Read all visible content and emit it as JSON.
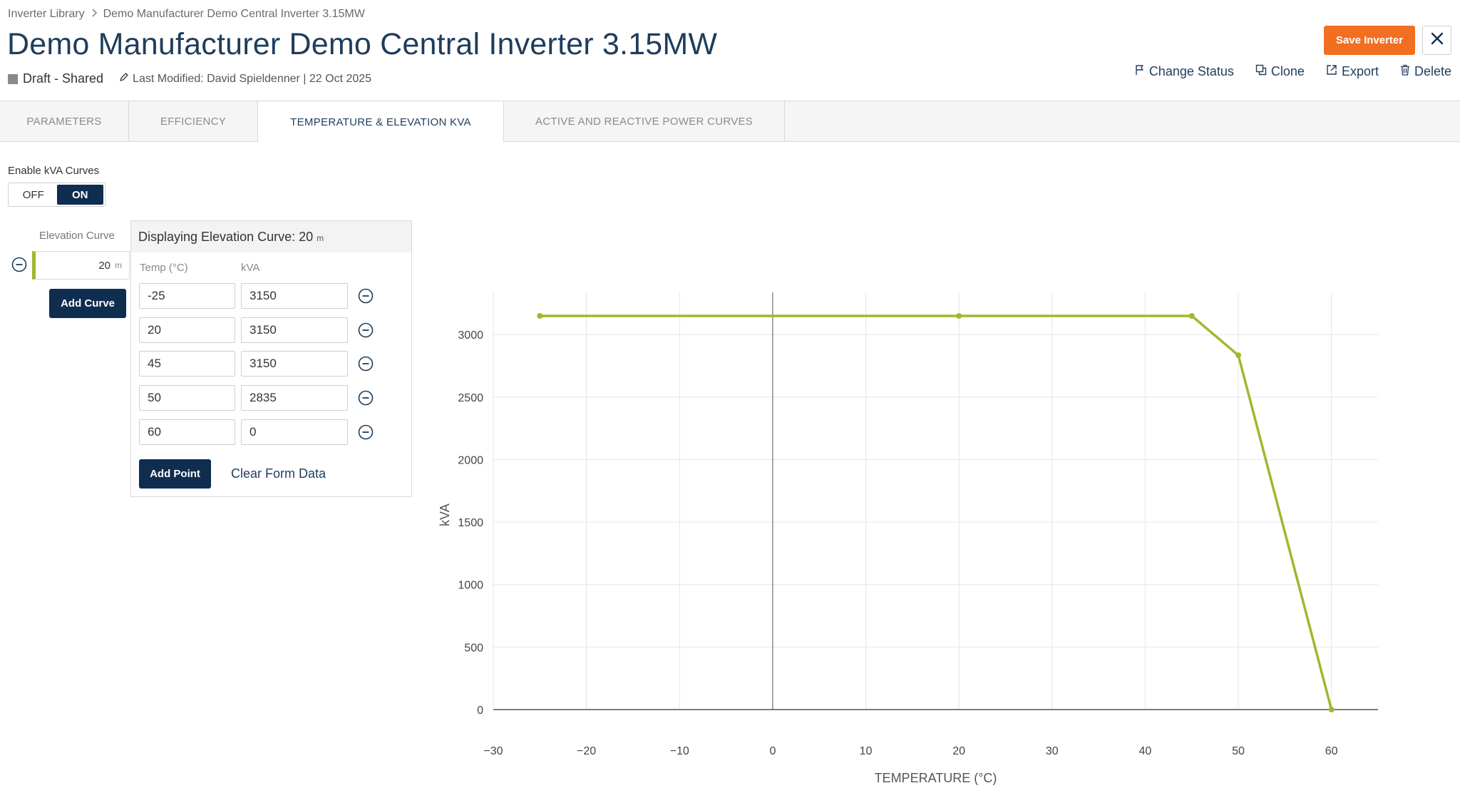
{
  "breadcrumb": {
    "root": "Inverter Library",
    "current": "Demo Manufacturer Demo Central Inverter 3.15MW"
  },
  "header": {
    "title": "Demo Manufacturer Demo Central Inverter 3.15MW",
    "status": "Draft - Shared",
    "status_color": "#8a8a8a",
    "last_modified": "Last Modified: David Spieldenner | 22 Oct 2025",
    "save_label": "Save Inverter",
    "actions": {
      "change_status": "Change Status",
      "clone": "Clone",
      "export": "Export",
      "delete": "Delete"
    }
  },
  "tabs": [
    {
      "label": "PARAMETERS",
      "active": false
    },
    {
      "label": "EFFICIENCY",
      "active": false
    },
    {
      "label": "TEMPERATURE & ELEVATION KVA",
      "active": true
    },
    {
      "label": "ACTIVE AND REACTIVE POWER CURVES",
      "active": false
    }
  ],
  "kva": {
    "enable_label": "Enable kVA Curves",
    "toggle_off": "OFF",
    "toggle_on": "ON",
    "toggle_selected": "ON",
    "elevation_curve_label": "Elevation Curve",
    "curves": [
      {
        "value": "20",
        "unit": "m"
      }
    ],
    "add_curve_label": "Add Curve",
    "panel_title": "Displaying Elevation Curve: 20",
    "panel_unit": "m",
    "col_temp": "Temp (°C)",
    "col_kva": "kVA",
    "points": [
      {
        "temp": "-25",
        "kva": "3150"
      },
      {
        "temp": "20",
        "kva": "3150"
      },
      {
        "temp": "45",
        "kva": "3150"
      },
      {
        "temp": "50",
        "kva": "2835"
      },
      {
        "temp": "60",
        "kva": "0"
      }
    ],
    "add_point_label": "Add Point",
    "clear_label": "Clear Form Data"
  },
  "colors": {
    "accent": "#f26f22",
    "navy": "#0f2d4f",
    "title": "#1f3d5c",
    "curve": "#a6b52e"
  },
  "chart_data": {
    "type": "line",
    "xlabel": "TEMPERATURE (°C)",
    "ylabel": "kVA",
    "xlim": [
      -30,
      65
    ],
    "ylim": [
      0,
      3300
    ],
    "xticks": [
      -30,
      -20,
      -10,
      0,
      10,
      20,
      30,
      40,
      50,
      60
    ],
    "yticks": [
      0,
      500,
      1000,
      1500,
      2000,
      2500,
      3000
    ],
    "grid": true,
    "series": [
      {
        "x": [
          -25,
          20,
          45,
          50,
          60
        ],
        "y": [
          3150,
          3150,
          3150,
          2835,
          0
        ],
        "color": "#a6b52e"
      }
    ]
  }
}
